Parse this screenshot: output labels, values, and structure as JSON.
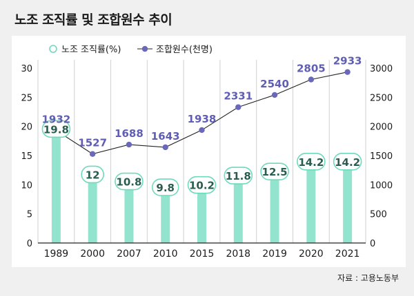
{
  "title": "노조 조직률 및 조합원수 추이",
  "source": "자료 : 고용노동부",
  "colors": {
    "bar": "#93e4cf",
    "bar_label_border": "#6fd9bb",
    "bar_label_text": "#2b5c50",
    "line": "#222222",
    "point": "#6a68b8",
    "point_label": "#5f5db4",
    "axis_text": "#1a1a1a",
    "grid": "#cfcfcf"
  },
  "chart_data": {
    "type": "bar",
    "categories": [
      "1989",
      "2000",
      "2007",
      "2010",
      "2015",
      "2018",
      "2019",
      "2020",
      "2021"
    ],
    "series": [
      {
        "name": "노조 조직률(%)",
        "type": "bar",
        "axis": "left",
        "values": [
          19.8,
          12,
          10.8,
          9.8,
          10.2,
          11.8,
          12.5,
          14.2,
          14.2
        ],
        "labels": [
          "19.8",
          "12",
          "10.8",
          "9.8",
          "10.2",
          "11.8",
          "12.5",
          "14.2",
          "14.2"
        ]
      },
      {
        "name": "조합원수(천명)",
        "type": "line",
        "axis": "right",
        "values": [
          1932,
          1527,
          1688,
          1643,
          1938,
          2331,
          2540,
          2805,
          2933
        ],
        "labels": [
          "1932",
          "1527",
          "1688",
          "1643",
          "1938",
          "2331",
          "2540",
          "2805",
          "2933"
        ]
      }
    ],
    "left_axis": {
      "min": 0,
      "max": 30,
      "ticks": [
        "0",
        "5",
        "10",
        "15",
        "20",
        "25",
        "30"
      ]
    },
    "right_axis": {
      "min": 0,
      "max": 3000,
      "ticks": [
        "0",
        "500",
        "1000",
        "1500",
        "2000",
        "2500",
        "3000"
      ]
    },
    "legend_position": "top-left",
    "grid": "vertical-lines"
  }
}
